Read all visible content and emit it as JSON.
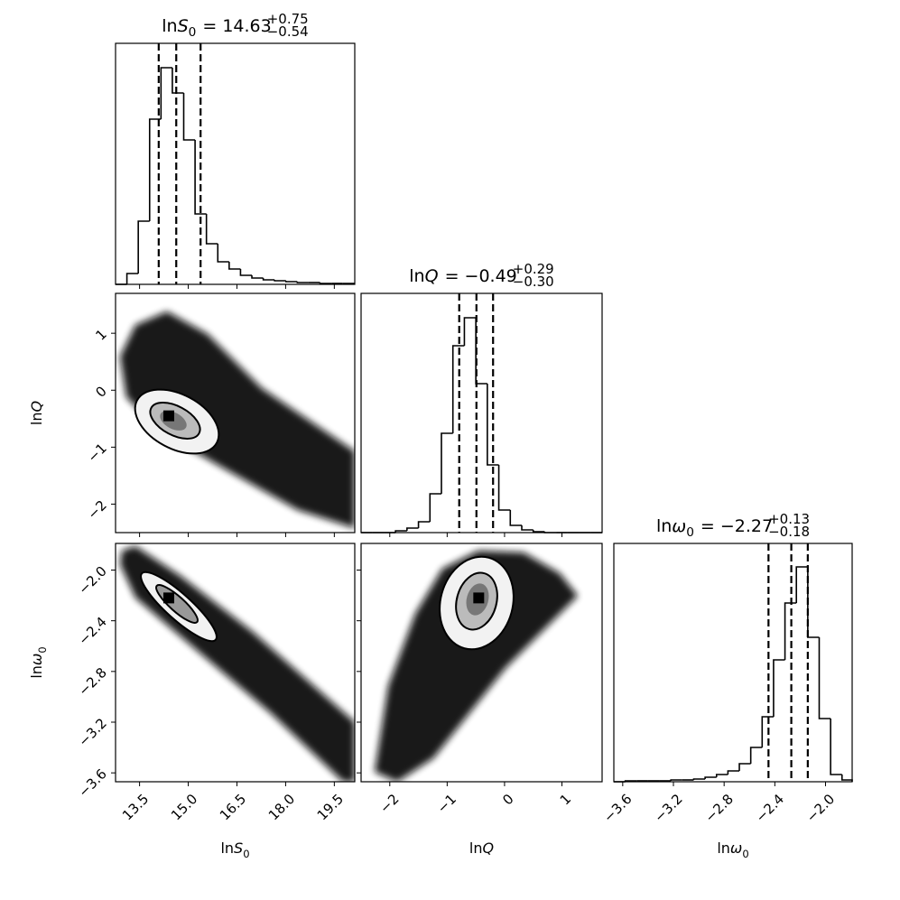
{
  "chart_data": {
    "type": "corner",
    "parameters": [
      {
        "label": {
          "prefix": "ln",
          "symbol": "S",
          "subscript": "0"
        },
        "title": {
          "prefix": "ln",
          "symbol": "S",
          "subscript": "0",
          "center": "= 14.63",
          "upper": "+0.75",
          "lower": "−0.54"
        },
        "lim": [
          12.76,
          20.13
        ],
        "ticks": [
          13.5,
          {
            "value": 15,
            "label": "15.0"
          },
          16.5,
          {
            "value": 18,
            "label": "18.0"
          },
          19.5
        ],
        "bins": [
          12.76,
          13.11,
          13.46,
          13.81,
          14.16,
          14.51,
          14.86,
          15.21,
          15.56,
          15.91,
          16.26,
          16.61,
          16.96,
          17.31,
          17.66,
          18.01,
          18.36,
          18.71,
          19.06,
          19.41,
          19.76,
          20.11
        ],
        "counts": [
          0,
          12,
          70,
          183,
          240,
          212,
          160,
          78,
          45,
          25,
          17,
          10,
          7,
          5,
          4,
          3,
          2,
          2,
          1,
          1,
          1
        ],
        "hist_ylim": [
          0,
          267
        ],
        "quantiles": [
          14.09,
          14.63,
          15.38
        ]
      },
      {
        "label": {
          "prefix": "ln",
          "symbol": "Q"
        },
        "title": {
          "prefix": "ln",
          "symbol": "Q",
          "center": "= −0.49",
          "upper": "+0.29",
          "lower": "−0.30"
        },
        "lim": [
          -2.5,
          1.7
        ],
        "ticks": [
          {
            "value": -2,
            "label": "−2"
          },
          {
            "value": -1,
            "label": "−1"
          },
          0,
          1
        ],
        "bins": [
          -2.5,
          -2.3,
          -2.1,
          -1.9,
          -1.7,
          -1.5,
          -1.3,
          -1.1,
          -0.9,
          -0.7,
          -0.5,
          -0.3,
          -0.1,
          0.1,
          0.3,
          0.5,
          0.7,
          0.9,
          1.1,
          1.3,
          1.5,
          1.7
        ],
        "counts": [
          0,
          0,
          0,
          2,
          5,
          12,
          43,
          110,
          207,
          238,
          165,
          75,
          25,
          8,
          3,
          1,
          0,
          0,
          0,
          0,
          0
        ],
        "hist_ylim": [
          0,
          265
        ],
        "quantiles": [
          -0.79,
          -0.49,
          -0.2
        ]
      },
      {
        "label": {
          "prefix": "ln",
          "symbol": "ω",
          "subscript": "0"
        },
        "title": {
          "prefix": "ln",
          "symbol": "ω",
          "subscript": "0",
          "center": "= −2.27",
          "upper": "+0.13",
          "lower": "−0.18"
        },
        "lim": [
          -3.67,
          -1.79
        ],
        "ticks": [
          {
            "value": -3.6,
            "label": "−3.6"
          },
          {
            "value": -3.2,
            "label": "−3.2"
          },
          {
            "value": -2.8,
            "label": "−2.8"
          },
          {
            "value": -2.4,
            "label": "−2.4"
          },
          {
            "value": -2,
            "label": "−2.0"
          }
        ],
        "bins": [
          -3.67,
          -3.58,
          -3.49,
          -3.4,
          -3.31,
          -3.22,
          -3.13,
          -3.04,
          -2.95,
          -2.86,
          -2.77,
          -2.68,
          -2.59,
          -2.5,
          -2.41,
          -2.32,
          -2.23,
          -2.14,
          -2.05,
          -1.96,
          -1.87,
          -1.78
        ],
        "counts": [
          0,
          1,
          1,
          1,
          1,
          2,
          2,
          3,
          5,
          8,
          12,
          20,
          38,
          72,
          135,
          198,
          238,
          160,
          70,
          8,
          2
        ],
        "hist_ylim": [
          0,
          264
        ],
        "quantiles": [
          -2.45,
          -2.27,
          -2.14
        ]
      }
    ],
    "pairs": [
      {
        "peak_x": 14.4,
        "peak_y": -0.45
      },
      {
        "peak_x": 14.4,
        "peak_y": -2.22
      },
      {
        "peak_x": -0.45,
        "peak_y": -2.22
      }
    ]
  }
}
